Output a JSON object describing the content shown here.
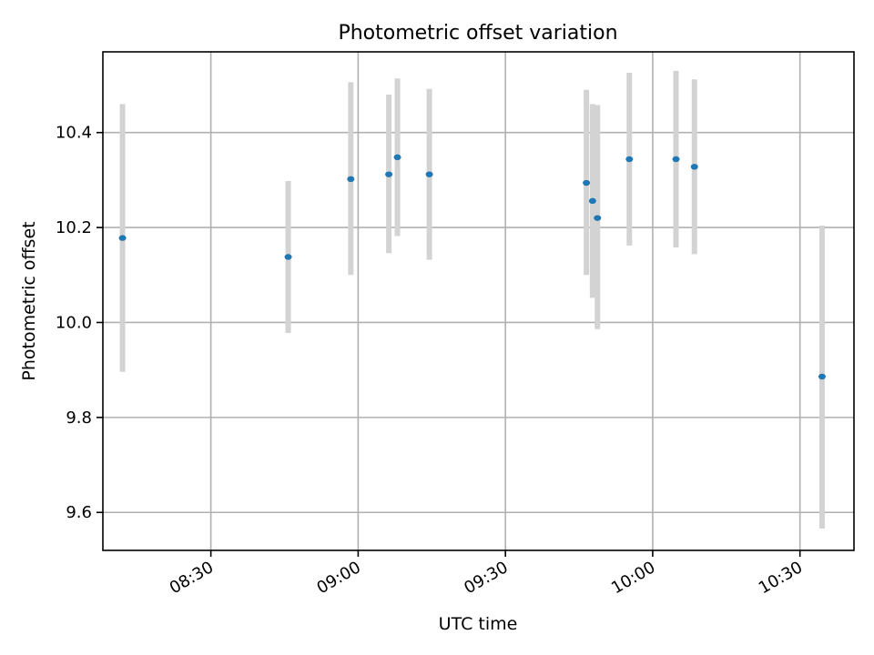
{
  "chart_data": {
    "type": "scatter",
    "title": "Photometric offset variation",
    "xlabel": "UTC time",
    "ylabel": "Photometric offset",
    "x_format": "HH:MM",
    "xlim": [
      "08:08",
      "10:41"
    ],
    "ylim": [
      9.52,
      10.57
    ],
    "xticks": [
      "08:30",
      "09:00",
      "09:30",
      "10:00",
      "10:30"
    ],
    "yticks": [
      9.6,
      9.8,
      10.0,
      10.2,
      10.4
    ],
    "yticklabels": [
      "9.6",
      "9.8",
      "10.0",
      "10.2",
      "10.4"
    ],
    "grid": true,
    "colors": {
      "point": "#1f77b4",
      "errorbar": "#d3d3d3",
      "grid": "#b0b0b0"
    },
    "points": [
      {
        "time": "08:12:00",
        "y": 10.178,
        "ylow": 9.896,
        "yhigh": 10.46
      },
      {
        "time": "08:45:45",
        "y": 10.138,
        "ylow": 9.978,
        "yhigh": 10.298
      },
      {
        "time": "08:58:30",
        "y": 10.302,
        "ylow": 10.1,
        "yhigh": 10.506
      },
      {
        "time": "09:06:15",
        "y": 10.312,
        "ylow": 10.146,
        "yhigh": 10.48
      },
      {
        "time": "09:08:00",
        "y": 10.348,
        "ylow": 10.182,
        "yhigh": 10.514
      },
      {
        "time": "09:14:30",
        "y": 10.312,
        "ylow": 10.132,
        "yhigh": 10.492
      },
      {
        "time": "09:46:30",
        "y": 10.294,
        "ylow": 10.1,
        "yhigh": 10.49
      },
      {
        "time": "09:47:45",
        "y": 10.256,
        "ylow": 10.052,
        "yhigh": 10.46
      },
      {
        "time": "09:48:45",
        "y": 10.22,
        "ylow": 9.986,
        "yhigh": 10.458
      },
      {
        "time": "09:55:15",
        "y": 10.344,
        "ylow": 10.162,
        "yhigh": 10.526
      },
      {
        "time": "10:04:45",
        "y": 10.344,
        "ylow": 10.158,
        "yhigh": 10.53
      },
      {
        "time": "10:08:30",
        "y": 10.328,
        "ylow": 10.144,
        "yhigh": 10.512
      },
      {
        "time": "10:34:30",
        "y": 9.886,
        "ylow": 9.566,
        "yhigh": 10.204
      }
    ]
  }
}
